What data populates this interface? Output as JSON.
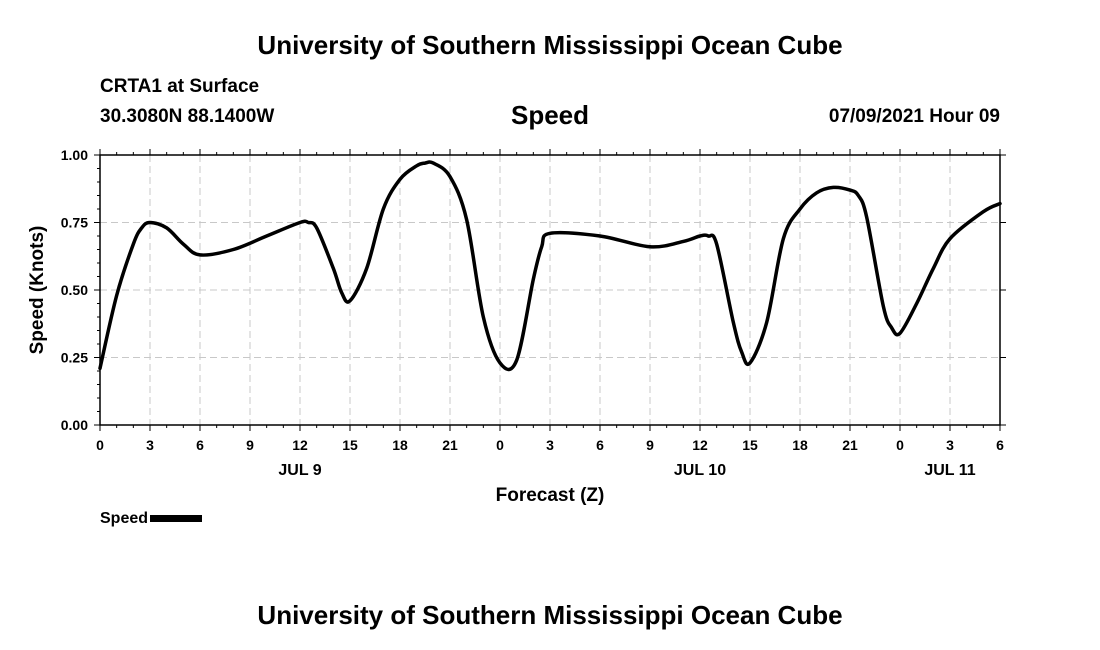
{
  "header": {
    "title_top": "University of Southern Mississippi Ocean Cube",
    "station": "CRTA1 at Surface",
    "coords": "30.3080N  88.1400W",
    "variable": "Speed",
    "issued": "07/09/2021 Hour 09",
    "title_bottom": "University of Southern Mississippi Ocean Cube"
  },
  "legend": {
    "label": "Speed",
    "color": "#000000"
  },
  "chart_data": {
    "type": "line",
    "xlabel": "Forecast (Z)",
    "ylabel": "Speed (Knots)",
    "xlim": [
      0,
      54
    ],
    "ylim": [
      0,
      1.0
    ],
    "grid": true,
    "legend_position": "bottom-left",
    "y_ticks": [
      {
        "value": 0.0,
        "label": "0.00"
      },
      {
        "value": 0.25,
        "label": "0.25"
      },
      {
        "value": 0.5,
        "label": "0.50"
      },
      {
        "value": 0.75,
        "label": "0.75"
      },
      {
        "value": 1.0,
        "label": "1.00"
      }
    ],
    "x_ticks": [
      {
        "value": 0,
        "label": "0"
      },
      {
        "value": 3,
        "label": "3"
      },
      {
        "value": 6,
        "label": "6"
      },
      {
        "value": 9,
        "label": "9"
      },
      {
        "value": 12,
        "label": "12"
      },
      {
        "value": 15,
        "label": "15"
      },
      {
        "value": 18,
        "label": "18"
      },
      {
        "value": 21,
        "label": "21"
      },
      {
        "value": 24,
        "label": "0"
      },
      {
        "value": 27,
        "label": "3"
      },
      {
        "value": 30,
        "label": "6"
      },
      {
        "value": 33,
        "label": "9"
      },
      {
        "value": 36,
        "label": "12"
      },
      {
        "value": 39,
        "label": "15"
      },
      {
        "value": 42,
        "label": "18"
      },
      {
        "value": 45,
        "label": "21"
      },
      {
        "value": 48,
        "label": "0"
      },
      {
        "value": 51,
        "label": "3"
      },
      {
        "value": 54,
        "label": "6"
      }
    ],
    "date_labels": [
      {
        "value": 12,
        "label": "JUL 9"
      },
      {
        "value": 36,
        "label": "JUL 10"
      },
      {
        "value": 51,
        "label": "JUL 11"
      }
    ],
    "series": [
      {
        "name": "Speed",
        "x": [
          0,
          1,
          2,
          2.5,
          3,
          4,
          5,
          6,
          8,
          10,
          12,
          12.5,
          13,
          14,
          14.5,
          15,
          16,
          17,
          18,
          19,
          19.5,
          20,
          21,
          22,
          23,
          24,
          25,
          26,
          26.5,
          27,
          30,
          33,
          35,
          36,
          36.5,
          37,
          38,
          38.5,
          39,
          40,
          41,
          42,
          43,
          44,
          45,
          45.5,
          46,
          47,
          47.5,
          48,
          49,
          50,
          51,
          53,
          54
        ],
        "y": [
          0.21,
          0.48,
          0.67,
          0.73,
          0.75,
          0.73,
          0.67,
          0.63,
          0.65,
          0.7,
          0.75,
          0.75,
          0.73,
          0.58,
          0.49,
          0.46,
          0.58,
          0.8,
          0.91,
          0.96,
          0.97,
          0.97,
          0.92,
          0.76,
          0.4,
          0.23,
          0.24,
          0.54,
          0.66,
          0.71,
          0.7,
          0.66,
          0.68,
          0.7,
          0.7,
          0.67,
          0.38,
          0.27,
          0.23,
          0.38,
          0.69,
          0.8,
          0.86,
          0.88,
          0.87,
          0.85,
          0.77,
          0.44,
          0.36,
          0.34,
          0.45,
          0.58,
          0.69,
          0.79,
          0.82
        ]
      }
    ]
  }
}
